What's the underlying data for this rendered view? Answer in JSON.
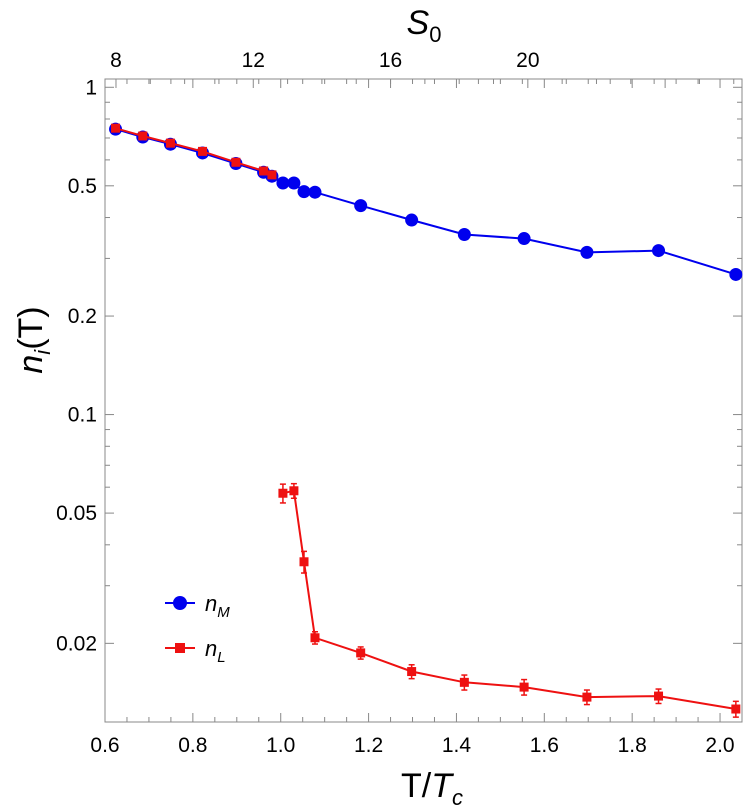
{
  "chart_data": {
    "type": "scatter",
    "x_axis": {
      "label_main": "T/",
      "label_var": "T",
      "label_sub": "c",
      "range": [
        0.6,
        2.05
      ],
      "ticks": [
        "0.6",
        "0.8",
        "1.0",
        "1.2",
        "1.4",
        "1.6",
        "1.8",
        "2.0"
      ]
    },
    "top_axis": {
      "label_var": "S",
      "label_sub": "0",
      "ticks": [
        "8",
        "12",
        "16",
        "20"
      ]
    },
    "y_axis": {
      "label_var": "n",
      "label_sub": "i",
      "label_rest": "(T)",
      "scale": "log",
      "range": [
        0.0115,
        1.06
      ],
      "ticks": [
        "1",
        "0.5",
        "0.2",
        "0.1",
        "0.05",
        "0.02"
      ]
    },
    "series": [
      {
        "name": "nM",
        "legend_var": "n",
        "legend_sub": "M",
        "color": "#0000ee",
        "marker": "circle",
        "x": [
          0.624,
          0.686,
          0.749,
          0.822,
          0.898,
          0.961,
          0.98,
          1.005,
          1.03,
          1.053,
          1.078,
          1.182,
          1.298,
          1.418,
          1.554,
          1.697,
          1.86,
          2.036
        ],
        "y": [
          0.745,
          0.705,
          0.67,
          0.63,
          0.585,
          0.55,
          0.535,
          0.51,
          0.51,
          0.48,
          0.478,
          0.435,
          0.393,
          0.355,
          0.345,
          0.313,
          0.317,
          0.268
        ]
      },
      {
        "name": "nL",
        "legend_var": "n",
        "legend_sub": "L",
        "color": "#ee1111",
        "marker": "square",
        "x": [
          0.624,
          0.686,
          0.749,
          0.822,
          0.898,
          0.961,
          0.98,
          1.005,
          1.03,
          1.053,
          1.078,
          1.182,
          1.298,
          1.418,
          1.554,
          1.697,
          1.86,
          2.036
        ],
        "y": [
          0.75,
          0.71,
          0.675,
          0.637,
          0.59,
          0.555,
          0.54,
          0.0575,
          0.0585,
          0.0355,
          0.0208,
          0.0187,
          0.0164,
          0.0152,
          0.0147,
          0.0137,
          0.0138,
          0.0126
        ],
        "err": [
          0,
          0,
          0,
          0,
          0,
          0,
          0,
          0.0038,
          0.003,
          0.0027,
          0.0009,
          0.0008,
          0.0008,
          0.0008,
          0.0008,
          0.0007,
          0.0007,
          0.0007
        ]
      }
    ],
    "legend_position": "lower-left",
    "grid": false
  }
}
